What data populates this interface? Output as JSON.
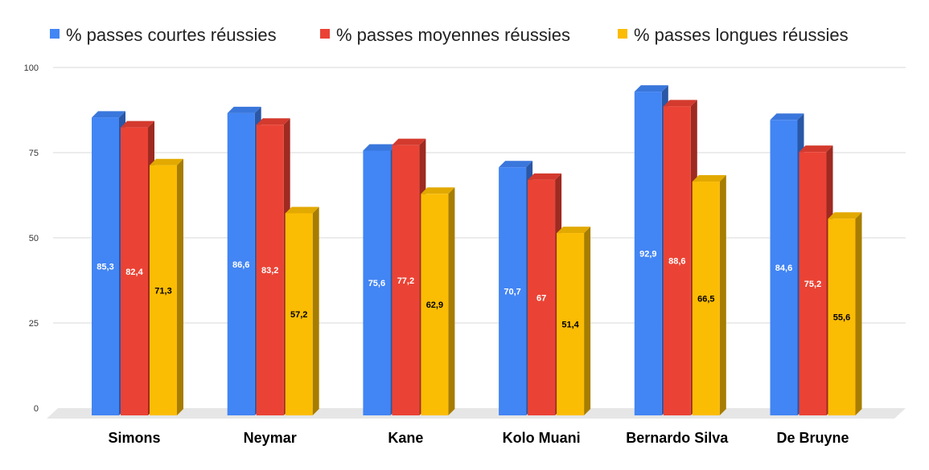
{
  "chart_data": {
    "type": "bar",
    "title": "",
    "xlabel": "",
    "ylabel": "",
    "ylim": [
      0,
      100
    ],
    "yticks": [
      0,
      25,
      50,
      75,
      100
    ],
    "grid": true,
    "legend_position": "top",
    "categories": [
      "Simons",
      "Neymar",
      "Kane",
      "Kolo Muani",
      "Bernardo Silva",
      "De Bruyne"
    ],
    "series": [
      {
        "name": "% passes courtes réussies",
        "color": "#4285f4",
        "side_color": "#2a57a6",
        "top_color": "#3a77dc",
        "label_color": "#ffffff",
        "values": [
          85.3,
          86.6,
          75.6,
          70.7,
          92.9,
          84.6
        ],
        "labels": [
          "85,3",
          "86,6",
          "75,6",
          "70,7",
          "92,9",
          "84,6"
        ]
      },
      {
        "name": "% passes moyennes réussies",
        "color": "#ea4335",
        "side_color": "#9e2a21",
        "top_color": "#d33a2d",
        "label_color": "#ffffff",
        "values": [
          82.4,
          83.2,
          77.2,
          67,
          88.6,
          75.2
        ],
        "labels": [
          "82,4",
          "83,2",
          "77,2",
          "67",
          "88,6",
          "75,2"
        ]
      },
      {
        "name": "% passes longues réussies",
        "color": "#fbbc04",
        "side_color": "#a77d00",
        "top_color": "#e2a900",
        "label_color": "#000000",
        "values": [
          71.3,
          57.2,
          62.9,
          51.4,
          66.5,
          55.6
        ],
        "labels": [
          "71,3",
          "57,2",
          "62,9",
          "51,4",
          "66,5",
          "55,6"
        ]
      }
    ]
  }
}
